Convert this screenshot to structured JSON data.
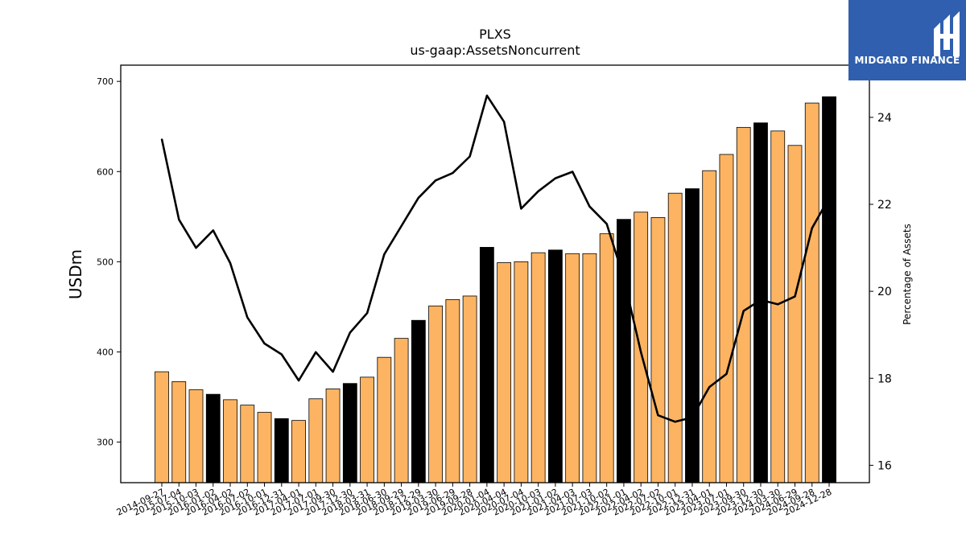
{
  "brand": {
    "name": "MIDGARD FINANCE",
    "bg_color": "#2f5fae",
    "icon": "mf-monogram-icon"
  },
  "chart_data": {
    "type": "bar",
    "title": "PLXS",
    "subtitle": "us-gaap:AssetsNoncurrent",
    "ylabel": "USDm",
    "y2label": "Percentage of Assets",
    "ylim": [
      255,
      718
    ],
    "y2lim": [
      15.6,
      25.2
    ],
    "yticks": [
      300,
      400,
      500,
      600,
      700
    ],
    "y2ticks": [
      16,
      18,
      20,
      22,
      24
    ],
    "categories": [
      "2014-09-27",
      "2015-07-04",
      "2015-10-03",
      "2016-01-02",
      "2016-04-02",
      "2016-07-02",
      "2016-10-01",
      "2016-12-31",
      "2017-04-01",
      "2017-07-01",
      "2017-09-30",
      "2017-12-30",
      "2018-03-31",
      "2018-06-30",
      "2018-09-29",
      "2018-12-29",
      "2019-03-30",
      "2019-06-29",
      "2019-09-28",
      "2020-01-04",
      "2020-04-04",
      "2020-07-04",
      "2020-10-03",
      "2021-01-02",
      "2021-04-03",
      "2021-07-03",
      "2021-10-02",
      "2022-01-01",
      "2022-04-02",
      "2022-07-02",
      "2022-10-01",
      "2022-12-31",
      "2023-04-01",
      "2023-07-01",
      "2023-09-30",
      "2023-12-30",
      "2024-03-30",
      "2024-06-29",
      "2024-09-28",
      "2024-12-28"
    ],
    "series": [
      {
        "values": [
          378,
          367,
          358,
          353,
          347,
          341,
          333,
          326,
          324,
          348,
          359,
          365,
          372,
          394,
          415,
          435,
          451,
          458,
          462,
          516,
          499,
          500,
          510,
          513,
          509,
          509,
          531,
          547,
          555,
          549,
          576,
          581,
          601,
          619,
          649,
          654,
          645,
          629,
          676,
          683
        ],
        "highlight": [
          false,
          false,
          false,
          true,
          false,
          false,
          false,
          true,
          false,
          false,
          false,
          true,
          false,
          false,
          false,
          true,
          false,
          false,
          false,
          true,
          false,
          false,
          false,
          true,
          false,
          false,
          false,
          true,
          false,
          false,
          false,
          true,
          false,
          false,
          false,
          true,
          false,
          false,
          false,
          true
        ]
      },
      {
        "axis": "right",
        "type": "line",
        "values": [
          23.5,
          21.65,
          21.0,
          21.4,
          20.65,
          19.4,
          18.8,
          18.55,
          17.95,
          18.6,
          18.15,
          19.05,
          19.5,
          20.85,
          21.5,
          22.15,
          22.55,
          22.72,
          23.1,
          24.5,
          23.9,
          21.9,
          22.3,
          22.6,
          22.75,
          21.95,
          21.55,
          20.3,
          18.6,
          17.15,
          17.0,
          17.1,
          17.8,
          18.1,
          19.55,
          19.8,
          19.7,
          19.88,
          21.45,
          22.15
        ]
      }
    ],
    "colors": {
      "bar": "#fdb462",
      "bar_highlight": "#000000",
      "line": "#000000"
    },
    "grid": false,
    "legend": "none"
  }
}
